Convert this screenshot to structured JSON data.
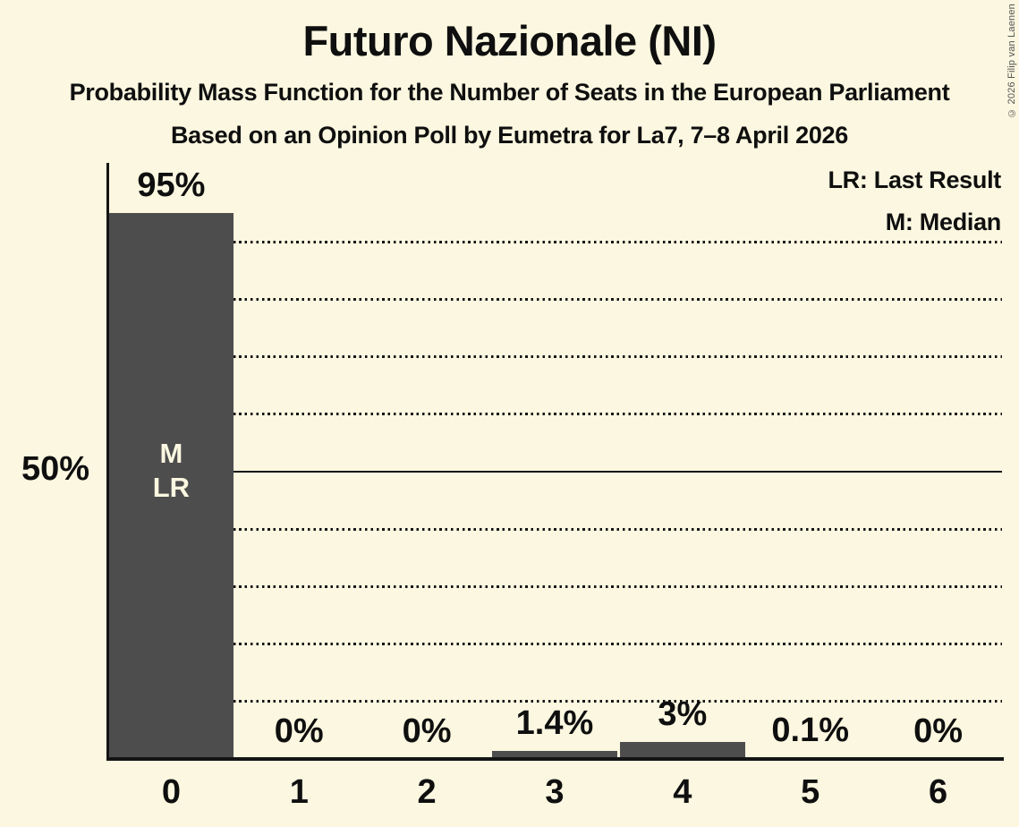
{
  "title": "Futuro Nazionale (NI)",
  "subtitle1": "Probability Mass Function for the Number of Seats in the European Parliament",
  "subtitle2": "Based on an Opinion Poll by Eumetra for La7, 7–8 April 2026",
  "copyright": "© 2026 Filip van Laenen",
  "legend": {
    "lr": "LR: Last Result",
    "m": "M: Median"
  },
  "y_axis": {
    "label": "50%",
    "value": 50
  },
  "colors": {
    "background": "#FBF7E0",
    "bar": "#4D4D4D",
    "text": "#0F0F0F",
    "line": "#141414",
    "bar_label_text": "#FBF7E0",
    "copyright_text": "#555555"
  },
  "chart_data": {
    "type": "bar",
    "title": "Futuro Nazionale (NI)",
    "categories": [
      "0",
      "1",
      "2",
      "3",
      "4",
      "5",
      "6"
    ],
    "values": [
      95,
      0,
      0,
      1.4,
      3,
      0.1,
      0
    ],
    "value_labels": [
      "95%",
      "0%",
      "0%",
      "1.4%",
      "3%",
      "0.1%",
      "0%"
    ],
    "xlabel": "",
    "ylabel": "",
    "ylim": [
      0,
      100
    ],
    "gridlines": {
      "interval": 10,
      "solid_at": 50,
      "style": "dotted"
    },
    "legend_position": "top-right",
    "annotations": [
      {
        "category": "0",
        "lines": [
          "M",
          "LR"
        ]
      }
    ]
  }
}
